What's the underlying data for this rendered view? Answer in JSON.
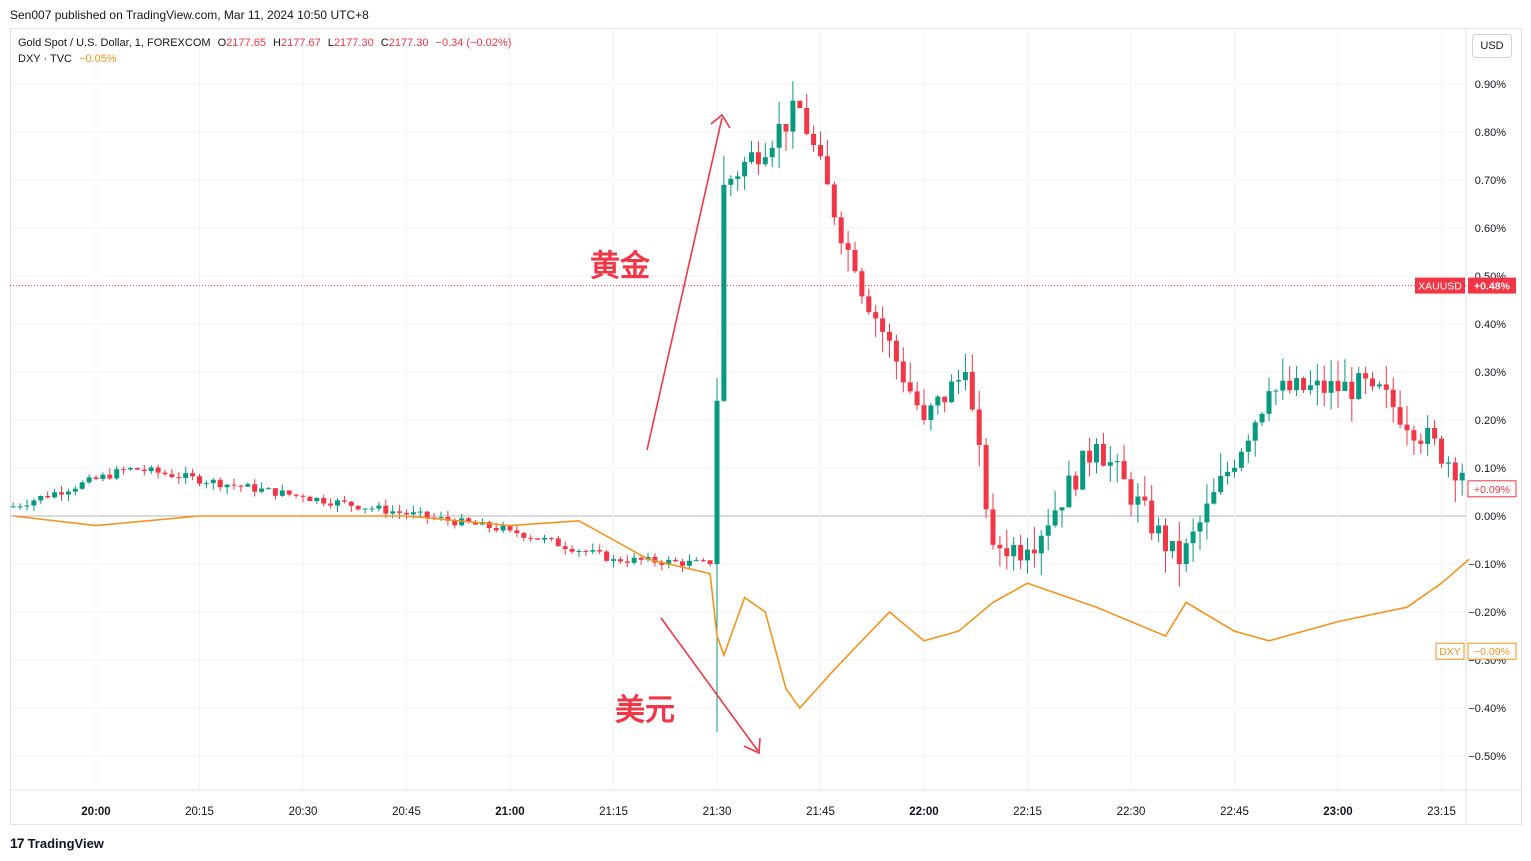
{
  "header": {
    "published_by": "Sen007 published on TradingView.com, Mar 11, 2024 10:50 UTC+8"
  },
  "legend": {
    "gold_symbol": "Gold Spot / U.S. Dollar, 1, FOREXCOM",
    "gold_ohlc": {
      "o_label": "O",
      "o": "2177.65",
      "h_label": "H",
      "h": "2177.67",
      "l_label": "L",
      "l": "2177.30",
      "c_label": "C",
      "c": "2177.30",
      "change": "−0.34 (−0.02%)"
    },
    "dxy_symbol": "DXY · TVC",
    "dxy_change": "−0.05%"
  },
  "currency_button": "USD",
  "annotations": {
    "gold": "黄金",
    "dollar": "美元"
  },
  "footer": {
    "logo_mark": "17",
    "logo_text": "TradingView"
  },
  "colors": {
    "up": "#089981",
    "down": "#f23645",
    "dxy": "#f7931a",
    "annotation": "#f23645"
  },
  "chart_data": {
    "type": "line",
    "chart_type_detail": "candlestick (XAUUSD) with overlaid line (DXY), percent comparison scale",
    "xlabel": "",
    "ylabel": "",
    "x_ticks": [
      "20:00",
      "20:15",
      "20:30",
      "20:45",
      "21:00",
      "21:15",
      "21:30",
      "21:45",
      "22:00",
      "22:15",
      "22:30",
      "22:45",
      "23:00",
      "23:15"
    ],
    "x_range": [
      "19:48",
      "23:20"
    ],
    "y_ticks": [
      "0.90%",
      "0.80%",
      "0.70%",
      "0.60%",
      "0.50%",
      "0.40%",
      "0.30%",
      "0.20%",
      "0.10%",
      "0.00%",
      "−0.10%",
      "−0.20%",
      "−0.30%",
      "−0.40%",
      "−0.50%"
    ],
    "ylim": [
      -0.56,
      0.95
    ],
    "grid": true,
    "price_labels": [
      {
        "name": "XAUUSD",
        "value": "+0.48%",
        "level": 0.48
      },
      {
        "name": "",
        "value": "+0.09%",
        "level": 0.09
      },
      {
        "name": "DXY",
        "value": "−0.09%",
        "level": -0.09
      }
    ],
    "series": [
      {
        "name": "XAUUSD",
        "style": "candlestick",
        "key_points": [
          {
            "x": "19:48",
            "close": 0.02
          },
          {
            "x": "20:05",
            "close": 0.1
          },
          {
            "x": "20:30",
            "close": 0.04
          },
          {
            "x": "21:00",
            "close": -0.03
          },
          {
            "x": "21:15",
            "close": -0.09
          },
          {
            "x": "21:29",
            "close": -0.1
          },
          {
            "x": "21:30",
            "low": -0.45,
            "close": 0.24
          },
          {
            "x": "21:31",
            "high": 0.75,
            "close": 0.69
          },
          {
            "x": "21:42",
            "high": 0.86,
            "close": 0.85
          },
          {
            "x": "21:50",
            "close": 0.51
          },
          {
            "x": "22:00",
            "close": 0.2
          },
          {
            "x": "22:06",
            "close": 0.3
          },
          {
            "x": "22:10",
            "low": -0.07,
            "close": -0.06
          },
          {
            "x": "22:15",
            "low": -0.12,
            "close": -0.07
          },
          {
            "x": "22:25",
            "close": 0.15
          },
          {
            "x": "22:37",
            "close": -0.1
          },
          {
            "x": "22:50",
            "close": 0.26
          },
          {
            "x": "23:05",
            "high": 0.3,
            "close": 0.27
          },
          {
            "x": "23:18",
            "close": 0.09
          }
        ]
      },
      {
        "name": "DXY",
        "style": "line",
        "points": [
          {
            "x": "19:48",
            "y": 0.0
          },
          {
            "x": "20:00",
            "y": -0.02
          },
          {
            "x": "20:15",
            "y": 0.0
          },
          {
            "x": "20:30",
            "y": 0.0
          },
          {
            "x": "20:45",
            "y": 0.0
          },
          {
            "x": "21:00",
            "y": -0.02
          },
          {
            "x": "21:10",
            "y": -0.01
          },
          {
            "x": "21:20",
            "y": -0.09
          },
          {
            "x": "21:29",
            "y": -0.12
          },
          {
            "x": "21:30",
            "y": -0.25
          },
          {
            "x": "21:31",
            "y": -0.29
          },
          {
            "x": "21:34",
            "y": -0.17
          },
          {
            "x": "21:37",
            "y": -0.2
          },
          {
            "x": "21:40",
            "y": -0.36
          },
          {
            "x": "21:42",
            "y": -0.4
          },
          {
            "x": "21:47",
            "y": -0.32
          },
          {
            "x": "21:55",
            "y": -0.2
          },
          {
            "x": "22:00",
            "y": -0.26
          },
          {
            "x": "22:05",
            "y": -0.24
          },
          {
            "x": "22:10",
            "y": -0.18
          },
          {
            "x": "22:15",
            "y": -0.14
          },
          {
            "x": "22:25",
            "y": -0.19
          },
          {
            "x": "22:35",
            "y": -0.25
          },
          {
            "x": "22:38",
            "y": -0.18
          },
          {
            "x": "22:45",
            "y": -0.24
          },
          {
            "x": "22:50",
            "y": -0.26
          },
          {
            "x": "23:00",
            "y": -0.22
          },
          {
            "x": "23:10",
            "y": -0.19
          },
          {
            "x": "23:15",
            "y": -0.14
          },
          {
            "x": "23:19",
            "y": -0.09
          }
        ]
      }
    ]
  }
}
